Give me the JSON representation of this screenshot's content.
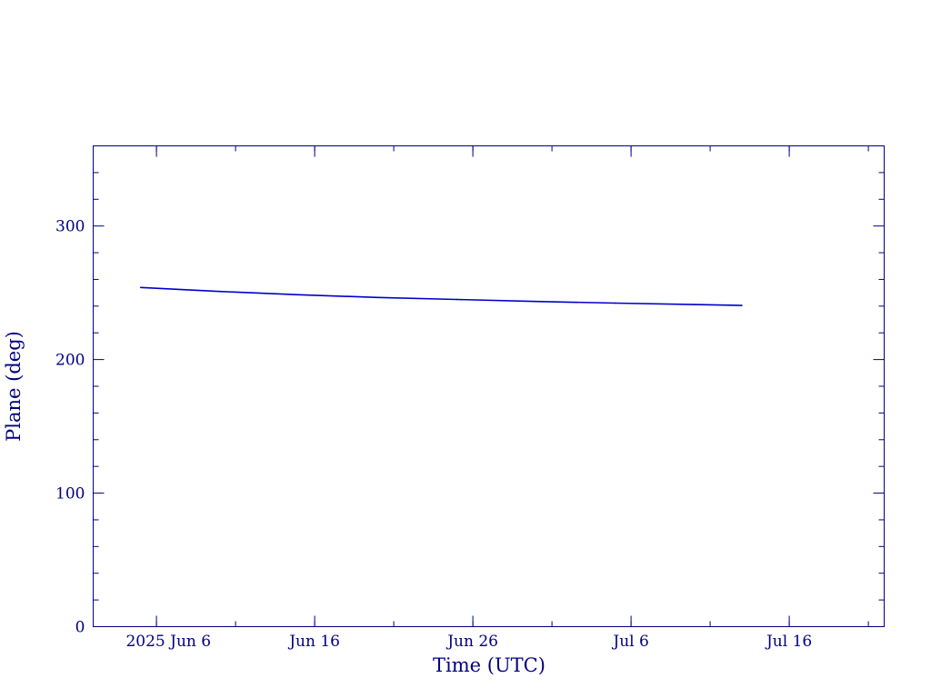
{
  "chart_data": {
    "type": "line",
    "title": "",
    "xlabel": "Time (UTC)",
    "ylabel": "Plane (deg)",
    "xlim": [
      "2025-06-02",
      "2025-07-22"
    ],
    "ylim": [
      0,
      360
    ],
    "grid": false,
    "x_ticks": [
      {
        "date": "2025-06-06",
        "label": "2025 Jun  6"
      },
      {
        "date": "2025-06-16",
        "label": "Jun 16"
      },
      {
        "date": "2025-06-26",
        "label": "Jun 26"
      },
      {
        "date": "2025-07-06",
        "label": "Jul  6"
      },
      {
        "date": "2025-07-16",
        "label": "Jul 16"
      }
    ],
    "y_ticks": [
      0,
      100,
      200,
      300
    ],
    "series": [
      {
        "x": [
          "2025-06-05",
          "2025-06-10",
          "2025-06-15",
          "2025-06-20",
          "2025-06-25",
          "2025-06-30",
          "2025-07-05",
          "2025-07-10",
          "2025-07-13"
        ],
        "y": [
          254,
          251,
          248.5,
          246.5,
          245,
          243.5,
          242.3,
          241.2,
          240.5
        ]
      }
    ],
    "colors": {
      "axis": "#000080",
      "line": "#0000cc"
    }
  }
}
